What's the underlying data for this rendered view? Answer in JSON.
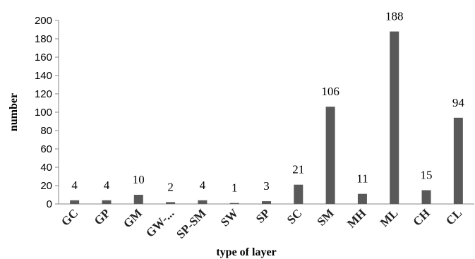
{
  "chart_data": {
    "type": "bar",
    "categories": [
      "GC",
      "GP",
      "GM",
      "GW-...",
      "SP-SM",
      "SW",
      "SP",
      "SC",
      "SM",
      "MH",
      "ML",
      "CH",
      "CL"
    ],
    "values": [
      4,
      4,
      10,
      2,
      4,
      1,
      3,
      21,
      106,
      11,
      188,
      15,
      94
    ],
    "data_labels": [
      "4",
      "4",
      "10",
      "2",
      "4",
      "1",
      "3",
      "21",
      "106",
      "11",
      "188",
      "15",
      "94"
    ],
    "xlabel": "type of layer",
    "ylabel": "number",
    "ylim": [
      0,
      200
    ],
    "yticks": [
      "0",
      "20",
      "40",
      "60",
      "80",
      "100",
      "120",
      "140",
      "160",
      "180",
      "200"
    ],
    "grid": false,
    "bar_color": "#595959"
  }
}
